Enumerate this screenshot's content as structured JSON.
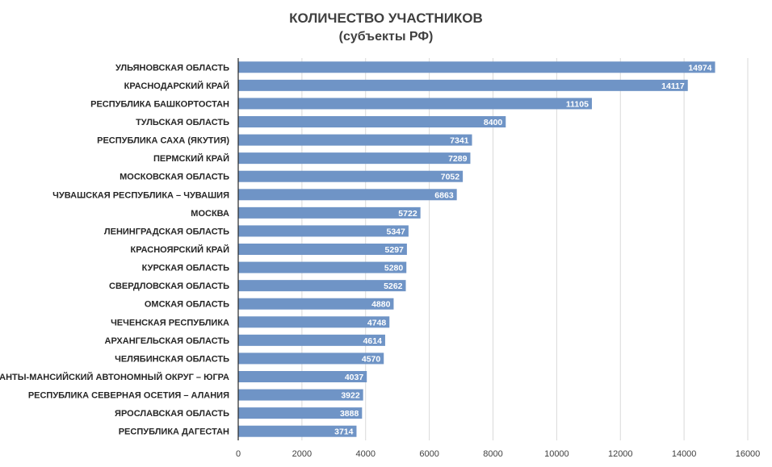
{
  "chart_data": {
    "type": "bar",
    "orientation": "horizontal",
    "title": "КОЛИЧЕСТВО УЧАСТНИКОВ",
    "subtitle": "(субъекты РФ)",
    "categories": [
      "УЛЬЯНОВСКАЯ ОБЛАСТЬ",
      "КРАСНОДАРСКИЙ КРАЙ",
      "РЕСПУБЛИКА БАШКОРТОСТАН",
      "ТУЛЬСКАЯ ОБЛАСТЬ",
      "РЕСПУБЛИКА САХА (ЯКУТИЯ)",
      "ПЕРМСКИЙ КРАЙ",
      "МОСКОВСКАЯ  ОБЛАСТЬ",
      "ЧУВАШСКАЯ РЕСПУБЛИКА – ЧУВАШИЯ",
      "МОСКВА",
      "ЛЕНИНГРАДСКАЯ ОБЛАСТЬ",
      "КРАСНОЯРСКИЙ КРАЙ",
      "КУРСКАЯ ОБЛАСТЬ",
      "СВЕРДЛОВСКАЯ ОБЛАСТЬ",
      "ОМСКАЯ  ОБЛАСТЬ",
      "ЧЕЧЕНСКАЯ РЕСПУБЛИКА",
      "АРХАНГЕЛЬСКАЯ ОБЛАСТЬ",
      "ЧЕЛЯБИНСКАЯ ОБЛАСТЬ",
      "ХАНТЫ-МАНСИЙСКИЙ АВТОНОМНЫЙ ОКРУГ – ЮГРА",
      "РЕСПУБЛИКА СЕВЕРНАЯ ОСЕТИЯ – АЛАНИЯ",
      "ЯРОСЛАВСКАЯ ОБЛАСТЬ",
      "РЕСПУБЛИКА ДАГЕСТАН"
    ],
    "values": [
      14974,
      14117,
      11105,
      8400,
      7341,
      7289,
      7052,
      6863,
      5722,
      5347,
      5297,
      5280,
      5262,
      4880,
      4748,
      4614,
      4570,
      4037,
      3922,
      3888,
      3714
    ],
    "xlim": [
      0,
      16000
    ],
    "xticks": [
      0,
      2000,
      4000,
      6000,
      8000,
      10000,
      12000,
      14000,
      16000
    ],
    "grid": "vertical",
    "data_labels": "inside-end",
    "bar_color": "#6f94c6"
  }
}
